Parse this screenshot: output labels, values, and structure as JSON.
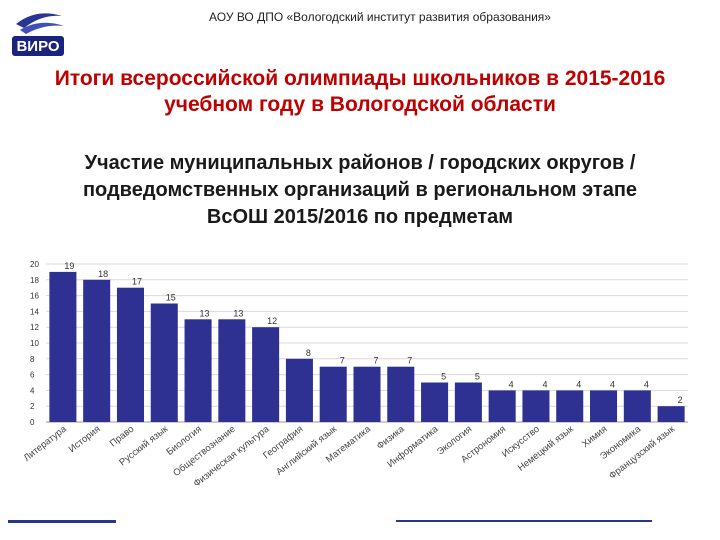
{
  "header": {
    "org_name": "АОУ ВО ДПО «Вологодский институт развития образования»",
    "logo_text": "ВИРО"
  },
  "title": {
    "line1": "Итоги всероссийской олимпиады школьников в 2015-2016",
    "line2": "учебном году в Вологодской области"
  },
  "subtitle": {
    "line1": "Участие муниципальных районов / городских округов /",
    "line2": "подведомственных организаций в региональном этапе",
    "line3": "ВсОШ 2015/2016 по предметам"
  },
  "colors": {
    "bar": "#2e3192",
    "title": "#c00000",
    "accent": "#283593"
  },
  "chart_data": {
    "type": "bar",
    "categories": [
      "Литература",
      "История",
      "Право",
      "Русский язык",
      "Биология",
      "Обществознание",
      "Физическая культура",
      "География",
      "Английский язык",
      "Математика",
      "Физика",
      "Информатика",
      "Экология",
      "Астрономия",
      "Искусство",
      "Немецкий язык",
      "Химия",
      "Экономика",
      "Французский язык"
    ],
    "values": [
      19,
      18,
      17,
      15,
      13,
      13,
      12,
      8,
      7,
      7,
      7,
      5,
      5,
      4,
      4,
      4,
      4,
      4,
      2
    ],
    "yticks": [
      0,
      2,
      4,
      6,
      8,
      10,
      12,
      14,
      16,
      18,
      20
    ],
    "ylim": [
      0,
      20
    ],
    "grid": true,
    "title": "",
    "xlabel": "",
    "ylabel": ""
  }
}
